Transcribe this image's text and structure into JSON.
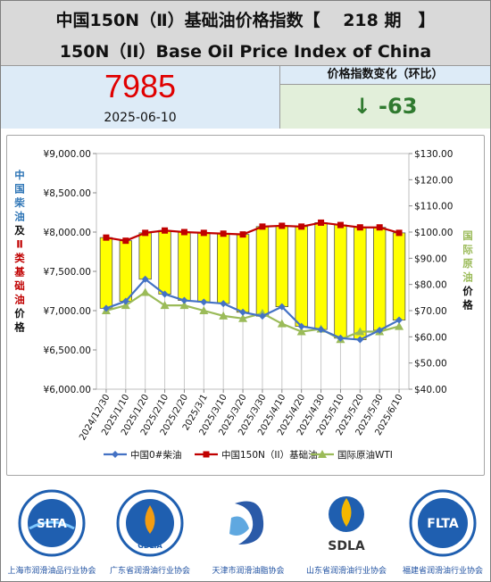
{
  "header": {
    "title_cn": "中国150N（Ⅱ）基础油价格指数【　 218 期　】",
    "title_en": "150N（II）Base Oil Price Index of China"
  },
  "index_panel": {
    "value": "7985",
    "date": "2025-06-10"
  },
  "change_panel": {
    "label": "价格指数变化（环比）",
    "arrow": "↓",
    "value": "-63"
  },
  "chart_data": {
    "type": "line",
    "x": [
      "2024/12/30",
      "2025/1/10",
      "2025/1/20",
      "2025/2/10",
      "2025/2/20",
      "2025/3/1",
      "2025/3/10",
      "2025/3/20",
      "2025/3/30",
      "2025/4/10",
      "2025/4/20",
      "2025/4/30",
      "2025/5/10",
      "2025/5/20",
      "2025/5/30",
      "2025/6/10"
    ],
    "series": [
      {
        "name": "中国0#柴油",
        "axis": "left",
        "color": "#4472c4",
        "values": [
          7030,
          7120,
          7400,
          7210,
          7130,
          7110,
          7090,
          6980,
          6930,
          7050,
          6800,
          6760,
          6650,
          6630,
          6750,
          6880
        ]
      },
      {
        "name": "中国150N（II）基础油",
        "axis": "left",
        "color": "#c00000",
        "values": [
          7930,
          7890,
          7990,
          8020,
          8000,
          7990,
          7980,
          7970,
          8070,
          8080,
          8070,
          8120,
          8090,
          8060,
          8060,
          7990
        ]
      },
      {
        "name": "国际原油WTI",
        "axis": "right",
        "color": "#9bbb59",
        "values": [
          70.0,
          72.0,
          77.0,
          72.0,
          72.0,
          70.0,
          68.0,
          67.0,
          69.0,
          65.0,
          62.0,
          63.0,
          59.0,
          62.0,
          62.0,
          64.0
        ]
      }
    ],
    "yleft": {
      "lim": [
        6000,
        9000
      ],
      "ticks": [
        "¥6,000.00",
        "¥6,500.00",
        "¥7,000.00",
        "¥7,500.00",
        "¥8,000.00",
        "¥8,500.00",
        "¥9,000.00"
      ]
    },
    "yright": {
      "lim": [
        40,
        130
      ],
      "ticks": [
        "$40.00",
        "$50.00",
        "$60.00",
        "$70.00",
        "$80.00",
        "$90.00",
        "$100.00",
        "$110.00",
        "$120.00",
        "$130.00"
      ]
    },
    "ylabel_left": [
      {
        "text": "中国柴油",
        "color": "#2e75b6"
      },
      {
        "text": "及",
        "color": "#111111"
      },
      {
        "text": "Ⅱ类基础油",
        "color": "#c00000"
      },
      {
        "text": "价格",
        "color": "#111111"
      }
    ],
    "ylabel_right": [
      {
        "text": "国际原油",
        "color": "#9bbb59"
      },
      {
        "text": "价格",
        "color": "#111111"
      }
    ],
    "bars": {
      "color": "#ffff00",
      "note": "high-low between diesel and base oil"
    },
    "grid": false,
    "legend": "bottom"
  },
  "logos": [
    {
      "name": "slta",
      "label": "上海市润滑油品行业协会",
      "mark": "SLTA"
    },
    {
      "name": "gdlia",
      "label": "广东省润滑油行业协会",
      "mark": "GDLIA"
    },
    {
      "name": "tianjin",
      "label": "天津市润滑油脂协会",
      "mark": ""
    },
    {
      "name": "sdla",
      "label": "山东省润滑油行业协会",
      "mark": "SDLA"
    },
    {
      "name": "flta",
      "label": "福建省润滑油行业协会",
      "mark": "FLTA"
    }
  ]
}
